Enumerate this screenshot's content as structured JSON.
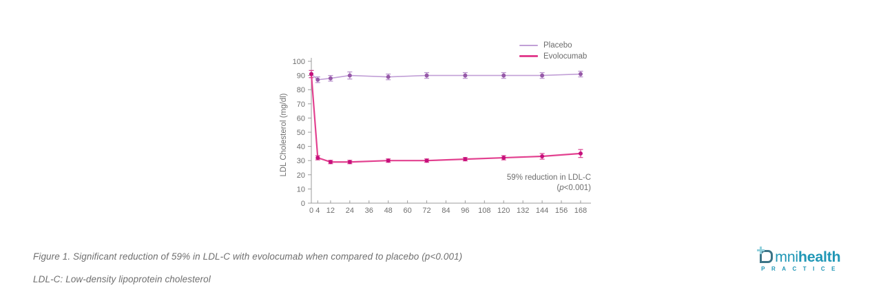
{
  "chart_data": {
    "type": "line",
    "title": "",
    "xlabel": "",
    "ylabel": "LDL Cholesterol (mg/dl)",
    "ylim": [
      0,
      100
    ],
    "xlim_weeks": [
      0,
      174
    ],
    "grid": false,
    "legend_position": "top-right",
    "axis_color": "#9b9b9b",
    "tick_label_color": "#6e6e6e",
    "yticks": [
      0,
      10,
      20,
      30,
      40,
      50,
      60,
      70,
      80,
      90,
      100
    ],
    "xticks": [
      0,
      4,
      12,
      24,
      36,
      48,
      60,
      72,
      84,
      96,
      108,
      120,
      132,
      144,
      156,
      168
    ],
    "x_weeks": [
      0,
      4,
      12,
      24,
      48,
      72,
      96,
      120,
      144,
      168
    ],
    "series": [
      {
        "name": "Placebo",
        "values": [
          91,
          87,
          88,
          90,
          89,
          90,
          90,
          90,
          90,
          91
        ],
        "errors": [
          2.5,
          2,
          2,
          2.5,
          2,
          2,
          2,
          2,
          2,
          2
        ],
        "color": "#c19fd6",
        "marker_color": "#9659a8",
        "error_color": "#b58cc9",
        "line_width": 1.6
      },
      {
        "name": "Evolocumab",
        "values": [
          91,
          32,
          29,
          29,
          30,
          30,
          31,
          32,
          33,
          35
        ],
        "errors": [
          2.5,
          1.5,
          1.2,
          1.2,
          1.2,
          1.2,
          1.2,
          1.5,
          2,
          2.8
        ],
        "color": "#e2408f",
        "marker_color": "#c6107c",
        "error_color": "#d94090",
        "line_width": 2.2
      }
    ],
    "annotation": {
      "line1": "59% reduction in LDL-C",
      "line2_pre": "(",
      "line2_italic": "p",
      "line2_post": "<0.001)"
    }
  },
  "caption": "Figure 1. Significant reduction of 59% in LDL-C with evolocumab when compared to placebo (p<0.001)",
  "footnote": "LDL-C: Low-density lipoprotein cholesterol",
  "logo": {
    "brand_light": "mni",
    "brand_bold": "health",
    "subtitle": "PRACTICE",
    "teal": "#2097b6",
    "icon_stroke": "#3c7487",
    "plus_color": "#92d0dc"
  }
}
